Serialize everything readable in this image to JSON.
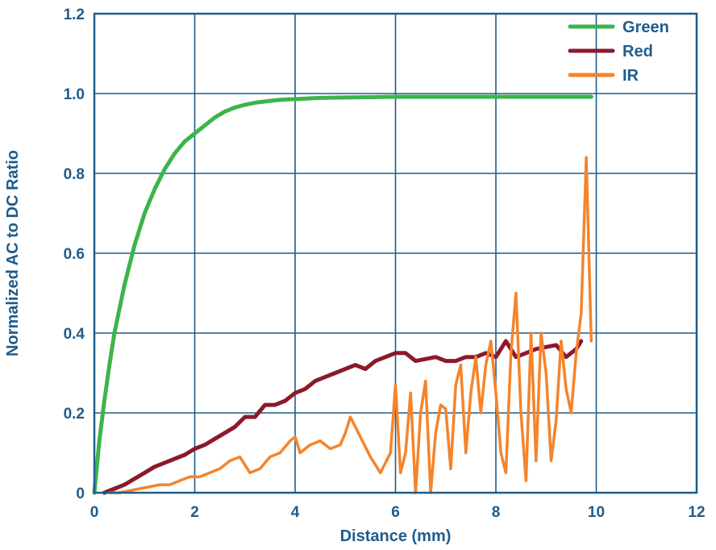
{
  "chart_data": {
    "type": "line",
    "title": "",
    "xlabel": "Distance (mm)",
    "ylabel": "Normalized AC to DC Ratio",
    "xlim": [
      0,
      12
    ],
    "ylim": [
      0,
      1.2
    ],
    "xticks": [
      0,
      2,
      4,
      6,
      8,
      10,
      12
    ],
    "yticks": [
      0,
      0.2,
      0.4,
      0.6,
      0.8,
      1.0,
      1.2
    ],
    "xtick_labels": [
      "0",
      "2",
      "4",
      "6",
      "8",
      "10",
      "12"
    ],
    "ytick_labels": [
      "0",
      "0.2",
      "0.4",
      "0.6",
      "0.8",
      "1.0",
      "1.2"
    ],
    "grid": true,
    "legend_position": "top-right",
    "axis_color": "#1f5c8c",
    "series": [
      {
        "name": "Green",
        "color": "#3bb54a",
        "x": [
          0,
          0.1,
          0.2,
          0.3,
          0.4,
          0.5,
          0.6,
          0.8,
          1.0,
          1.2,
          1.4,
          1.6,
          1.8,
          2.0,
          2.2,
          2.4,
          2.6,
          2.8,
          3.0,
          3.2,
          3.4,
          3.6,
          3.8,
          4.0,
          4.5,
          5.0,
          5.5,
          6.0,
          6.5,
          7.0,
          7.5,
          8.0,
          8.5,
          9.0,
          9.5,
          9.9
        ],
        "y": [
          0,
          0.13,
          0.23,
          0.32,
          0.4,
          0.46,
          0.52,
          0.62,
          0.7,
          0.76,
          0.81,
          0.85,
          0.88,
          0.9,
          0.92,
          0.94,
          0.955,
          0.965,
          0.972,
          0.977,
          0.98,
          0.983,
          0.985,
          0.986,
          0.989,
          0.99,
          0.991,
          0.992,
          0.992,
          0.992,
          0.992,
          0.992,
          0.992,
          0.992,
          0.992,
          0.992
        ]
      },
      {
        "name": "Red",
        "color": "#8b1a2b",
        "x": [
          0.2,
          0.4,
          0.6,
          0.8,
          1.0,
          1.2,
          1.4,
          1.6,
          1.8,
          2.0,
          2.2,
          2.4,
          2.6,
          2.8,
          3.0,
          3.2,
          3.4,
          3.6,
          3.8,
          4.0,
          4.2,
          4.4,
          4.6,
          4.8,
          5.0,
          5.2,
          5.4,
          5.6,
          5.8,
          6.0,
          6.2,
          6.4,
          6.6,
          6.8,
          7.0,
          7.2,
          7.4,
          7.6,
          7.8,
          8.0,
          8.2,
          8.4,
          8.6,
          8.8,
          9.0,
          9.2,
          9.4,
          9.6,
          9.7
        ],
        "y": [
          0,
          0.01,
          0.02,
          0.035,
          0.05,
          0.065,
          0.075,
          0.085,
          0.095,
          0.11,
          0.12,
          0.135,
          0.15,
          0.165,
          0.19,
          0.19,
          0.22,
          0.22,
          0.23,
          0.25,
          0.26,
          0.28,
          0.29,
          0.3,
          0.31,
          0.32,
          0.31,
          0.33,
          0.34,
          0.35,
          0.35,
          0.33,
          0.335,
          0.34,
          0.33,
          0.33,
          0.34,
          0.34,
          0.35,
          0.34,
          0.38,
          0.34,
          0.35,
          0.36,
          0.365,
          0.37,
          0.34,
          0.36,
          0.38
        ]
      },
      {
        "name": "IR",
        "color": "#f5842b",
        "x": [
          0.3,
          0.5,
          0.7,
          0.9,
          1.1,
          1.3,
          1.5,
          1.7,
          1.9,
          2.1,
          2.3,
          2.5,
          2.7,
          2.9,
          3.0,
          3.1,
          3.3,
          3.5,
          3.7,
          3.9,
          4.0,
          4.1,
          4.3,
          4.5,
          4.7,
          4.9,
          5.0,
          5.1,
          5.3,
          5.5,
          5.7,
          5.9,
          6.0,
          6.1,
          6.2,
          6.3,
          6.4,
          6.5,
          6.6,
          6.7,
          6.8,
          6.9,
          7.0,
          7.1,
          7.2,
          7.3,
          7.4,
          7.5,
          7.6,
          7.7,
          7.8,
          7.9,
          8.0,
          8.1,
          8.2,
          8.3,
          8.4,
          8.5,
          8.6,
          8.7,
          8.8,
          8.9,
          9.0,
          9.1,
          9.2,
          9.3,
          9.4,
          9.5,
          9.6,
          9.7,
          9.8,
          9.9
        ],
        "y": [
          0,
          0,
          0.005,
          0.01,
          0.015,
          0.02,
          0.02,
          0.03,
          0.04,
          0.04,
          0.05,
          0.06,
          0.08,
          0.09,
          0.07,
          0.05,
          0.06,
          0.09,
          0.1,
          0.13,
          0.14,
          0.1,
          0.12,
          0.13,
          0.11,
          0.12,
          0.15,
          0.19,
          0.14,
          0.09,
          0.05,
          0.1,
          0.27,
          0.05,
          0.1,
          0.25,
          0.0,
          0.2,
          0.28,
          0.0,
          0.15,
          0.22,
          0.21,
          0.06,
          0.27,
          0.32,
          0.1,
          0.25,
          0.34,
          0.2,
          0.32,
          0.38,
          0.25,
          0.1,
          0.05,
          0.35,
          0.5,
          0.2,
          0.03,
          0.4,
          0.08,
          0.4,
          0.3,
          0.08,
          0.18,
          0.38,
          0.26,
          0.2,
          0.35,
          0.45,
          0.84,
          0.38
        ]
      }
    ]
  }
}
